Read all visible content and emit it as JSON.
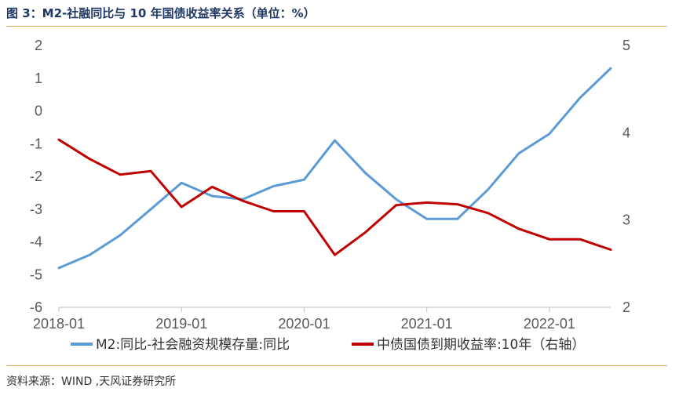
{
  "header": {
    "title": "图 3：M2-社融同比与 10 年国债收益率关系（单位：%）"
  },
  "footer": {
    "source": "资料来源：WIND ,天风证券研究所"
  },
  "chart_data": {
    "type": "line",
    "x_tick_labels": [
      "2018-01",
      "2019-01",
      "2020-01",
      "2021-01",
      "2022-01"
    ],
    "x": [
      "2018-01",
      "2018-04",
      "2018-07",
      "2018-10",
      "2019-01",
      "2019-04",
      "2019-07",
      "2019-10",
      "2020-01",
      "2020-04",
      "2020-07",
      "2020-10",
      "2021-01",
      "2021-04",
      "2021-07",
      "2021-10",
      "2022-01",
      "2022-04",
      "2022-07"
    ],
    "y_left": {
      "ylim": [
        -6,
        2
      ],
      "ticks": [
        -6,
        -5,
        -4,
        -3,
        -2,
        -1,
        0,
        1,
        2
      ]
    },
    "y_right": {
      "ylim": [
        2,
        5
      ],
      "ticks": [
        2,
        3,
        4,
        5
      ]
    },
    "grid": false,
    "legend_position": "bottom",
    "series": [
      {
        "name": "M2:同比-社会融资规模存量:同比",
        "axis": "left",
        "color": "#5b9bd5",
        "values": [
          -4.8,
          -4.4,
          -3.8,
          -3.0,
          -2.2,
          -2.6,
          -2.7,
          -2.3,
          -2.1,
          -0.9,
          -1.9,
          -2.7,
          -3.3,
          -3.3,
          -2.4,
          -1.3,
          -0.7,
          0.4,
          1.3
        ]
      },
      {
        "name": "中债国债到期收益率:10年（右轴）",
        "axis": "right",
        "color": "#c00000",
        "values": [
          3.92,
          3.7,
          3.52,
          3.56,
          3.15,
          3.38,
          3.22,
          3.1,
          3.1,
          2.6,
          2.86,
          3.17,
          3.2,
          3.18,
          3.08,
          2.9,
          2.78,
          2.78,
          2.66
        ]
      }
    ]
  }
}
